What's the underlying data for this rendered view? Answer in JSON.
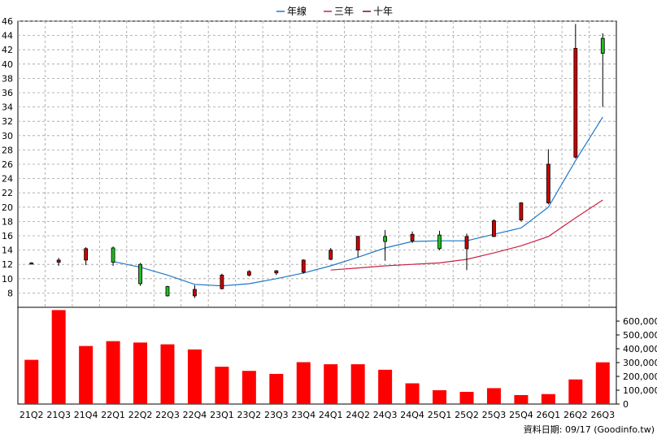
{
  "chart_data": {
    "type": "candlestick+volume",
    "legend": {
      "position": "top-center",
      "items": [
        {
          "label": "年線",
          "color": "#1f77c8"
        },
        {
          "label": "三年",
          "color": "#cc2244"
        },
        {
          "label": "十年",
          "color": "#880044"
        }
      ]
    },
    "categories": [
      "21Q2",
      "21Q3",
      "21Q4",
      "22Q1",
      "22Q2",
      "22Q3",
      "22Q4",
      "23Q1",
      "23Q2",
      "23Q3",
      "23Q4",
      "24Q1",
      "24Q2",
      "24Q3",
      "24Q4",
      "25Q1",
      "25Q2",
      "25Q3",
      "25Q4",
      "26Q1",
      "26Q2",
      "26Q3"
    ],
    "price_axis": {
      "min": 6,
      "max": 46,
      "ticks": [
        8,
        10,
        12,
        14,
        16,
        18,
        20,
        22,
        24,
        26,
        28,
        30,
        32,
        34,
        36,
        38,
        40,
        42,
        44,
        46
      ],
      "grid": true
    },
    "volume_axis": {
      "min": 0,
      "max": 700000,
      "ticks": [
        0,
        100000,
        200000,
        300000,
        400000,
        500000,
        600000
      ],
      "tick_labels": [
        "0",
        "100,000",
        "200,000",
        "300,000",
        "400,000",
        "500,000",
        "600,000"
      ]
    },
    "candles": [
      {
        "open": 12.1,
        "close": 12.2,
        "high": 12.3,
        "low": 12.0
      },
      {
        "open": 12.3,
        "close": 12.6,
        "high": 12.9,
        "low": 11.8
      },
      {
        "open": 12.6,
        "close": 14.2,
        "high": 14.4,
        "low": 11.9
      },
      {
        "open": 14.3,
        "close": 12.3,
        "high": 14.5,
        "low": 11.8
      },
      {
        "open": 12.0,
        "close": 9.3,
        "high": 12.2,
        "low": 9.0
      },
      {
        "open": 8.9,
        "close": 7.6,
        "high": 9.0,
        "low": 7.5
      },
      {
        "open": 7.6,
        "close": 8.5,
        "high": 9.1,
        "low": 7.3
      },
      {
        "open": 8.6,
        "close": 10.5,
        "high": 10.7,
        "low": 8.5
      },
      {
        "open": 10.5,
        "close": 11.0,
        "high": 11.2,
        "low": 10.3
      },
      {
        "open": 10.8,
        "close": 11.1,
        "high": 11.2,
        "low": 10.5
      },
      {
        "open": 10.9,
        "close": 12.6,
        "high": 12.7,
        "low": 10.7
      },
      {
        "open": 12.7,
        "close": 14.0,
        "high": 14.3,
        "low": 12.6
      },
      {
        "open": 14.0,
        "close": 15.9,
        "high": 16.0,
        "low": 13.0
      },
      {
        "open": 15.9,
        "close": 15.2,
        "high": 16.8,
        "low": 12.5
      },
      {
        "open": 15.3,
        "close": 16.2,
        "high": 16.6,
        "low": 15.0
      },
      {
        "open": 16.1,
        "close": 14.2,
        "high": 16.7,
        "low": 14.0
      },
      {
        "open": 14.2,
        "close": 15.9,
        "high": 16.3,
        "low": 11.2
      },
      {
        "open": 15.9,
        "close": 18.1,
        "high": 18.3,
        "low": 15.8
      },
      {
        "open": 18.2,
        "close": 20.6,
        "high": 20.7,
        "low": 18.0
      },
      {
        "open": 20.6,
        "close": 26.0,
        "high": 28.1,
        "low": 20.4
      },
      {
        "open": 27.0,
        "close": 42.2,
        "high": 45.6,
        "low": 26.8
      },
      {
        "open": 43.6,
        "close": 41.5,
        "high": 44.3,
        "low": 34.0
      }
    ],
    "series": [
      {
        "name": "年線",
        "values": [
          null,
          null,
          null,
          12.4,
          11.6,
          10.5,
          9.2,
          9.0,
          9.3,
          10.0,
          10.8,
          11.8,
          13.0,
          14.3,
          15.2,
          15.3,
          15.3,
          16.2,
          17.1,
          20.0,
          26.5,
          32.6
        ]
      },
      {
        "name": "三年",
        "values": [
          null,
          null,
          null,
          null,
          null,
          null,
          null,
          null,
          null,
          null,
          null,
          11.2,
          11.5,
          11.8,
          12.0,
          12.2,
          12.7,
          13.6,
          14.6,
          15.9,
          18.5,
          21.0
        ]
      }
    ],
    "volume": [
      320000,
      680000,
      420000,
      455000,
      445000,
      432000,
      395000,
      270000,
      240000,
      218000,
      303000,
      288000,
      288000,
      248000,
      150000,
      100000,
      88000,
      115000,
      65000,
      72000,
      178000,
      302000
    ]
  },
  "footer": {
    "source_text": "資料日期: 09/17  (Goodinfo.tw)"
  },
  "colors": {
    "up": "#cc0000",
    "down": "#22bb22",
    "volume": "#ff0000",
    "grid": "#a0a0a0"
  }
}
